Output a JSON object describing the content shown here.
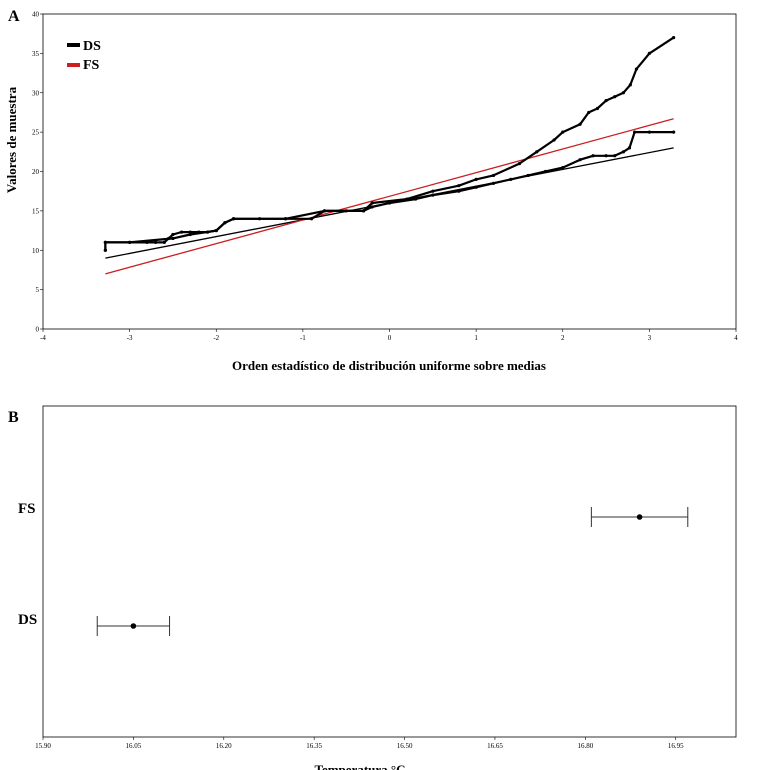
{
  "chart_data": [
    {
      "panel_label": "A",
      "type": "scatter",
      "title": "",
      "xlabel": "Orden estadístico de distribución uniforme sobre medias",
      "ylabel": "Valores de muestra",
      "xlim": [
        -4,
        4
      ],
      "ylim": [
        0,
        40
      ],
      "xticks": [
        "-4",
        "-3",
        "-2",
        "-1",
        "0",
        "1",
        "2",
        "3",
        "4"
      ],
      "yticks": [
        "0",
        "5",
        "10",
        "15",
        "20",
        "25",
        "30",
        "35",
        "40"
      ],
      "legend": {
        "position": "top-left",
        "entries": [
          {
            "name": "DS",
            "color": "#000000"
          },
          {
            "name": "FS",
            "color": "#cc1f1f"
          }
        ]
      },
      "series": [
        {
          "name": "DS",
          "color": "#000000",
          "points": [
            [
              -3.28,
              10
            ],
            [
              -3.28,
              11
            ],
            [
              -3.0,
              11
            ],
            [
              -2.8,
              11
            ],
            [
              -2.7,
              11
            ],
            [
              -2.6,
              11
            ],
            [
              -2.55,
              11.5
            ],
            [
              -2.5,
              12
            ],
            [
              -2.4,
              12.3
            ],
            [
              -2.3,
              12.3
            ],
            [
              -2.2,
              12.3
            ],
            [
              -2.1,
              12.3
            ],
            [
              -2.0,
              12.5
            ],
            [
              -1.9,
              13.5
            ],
            [
              -1.8,
              14
            ],
            [
              -1.5,
              14
            ],
            [
              -1.2,
              14
            ],
            [
              -0.9,
              14
            ],
            [
              -0.75,
              15
            ],
            [
              -0.5,
              15
            ],
            [
              -0.3,
              15
            ],
            [
              -0.2,
              15.5
            ],
            [
              0,
              16
            ],
            [
              0.3,
              16.5
            ],
            [
              0.5,
              17
            ],
            [
              0.8,
              17.5
            ],
            [
              1.0,
              18
            ],
            [
              1.2,
              18.5
            ],
            [
              1.4,
              19
            ],
            [
              1.6,
              19.5
            ],
            [
              1.8,
              20
            ],
            [
              2.0,
              20.5
            ],
            [
              2.2,
              21.5
            ],
            [
              2.35,
              22
            ],
            [
              2.5,
              22
            ],
            [
              2.6,
              22
            ],
            [
              2.7,
              22.5
            ],
            [
              2.77,
              23
            ],
            [
              2.83,
              25
            ],
            [
              3.0,
              25
            ],
            [
              3.28,
              25
            ]
          ],
          "fit_line": [
            [
              -3.28,
              9
            ],
            [
              3.28,
              23
            ]
          ]
        },
        {
          "name": "FS",
          "color": "#cc1f1f",
          "points": [
            [
              -3.28,
              10
            ],
            [
              -3.28,
              11
            ],
            [
              -3.0,
              11
            ],
            [
              -2.5,
              11.5
            ],
            [
              -2.3,
              12
            ],
            [
              -2.0,
              12.5
            ],
            [
              -1.9,
              13.5
            ],
            [
              -1.8,
              14
            ],
            [
              -1.2,
              14
            ],
            [
              -0.75,
              15
            ],
            [
              -0.3,
              15
            ],
            [
              -0.2,
              16
            ],
            [
              0.2,
              16.5
            ],
            [
              0.5,
              17.5
            ],
            [
              0.8,
              18.2
            ],
            [
              1.0,
              19
            ],
            [
              1.2,
              19.5
            ],
            [
              1.5,
              21
            ],
            [
              1.7,
              22.5
            ],
            [
              1.9,
              24
            ],
            [
              2.0,
              25
            ],
            [
              2.2,
              26
            ],
            [
              2.3,
              27.5
            ],
            [
              2.4,
              28
            ],
            [
              2.5,
              29
            ],
            [
              2.6,
              29.5
            ],
            [
              2.7,
              30
            ],
            [
              2.78,
              31
            ],
            [
              2.85,
              33
            ],
            [
              3.0,
              35
            ],
            [
              3.28,
              37
            ]
          ],
          "fit_line": [
            [
              -3.28,
              7
            ],
            [
              3.28,
              26.7
            ]
          ]
        }
      ]
    },
    {
      "panel_label": "B",
      "type": "scatter",
      "title": "",
      "xlabel": "Temperatura °C",
      "ylabel": "",
      "xlim": [
        15.9,
        17.05
      ],
      "xticks": [
        "15.90",
        "16.05",
        "16.20",
        "16.35",
        "16.50",
        "16.65",
        "16.80",
        "16.95"
      ],
      "categories": [
        "FS",
        "DS"
      ],
      "series": [
        {
          "name": "FS",
          "mean": 16.89,
          "ci_low": 16.81,
          "ci_high": 16.97
        },
        {
          "name": "DS",
          "mean": 16.05,
          "ci_low": 15.99,
          "ci_high": 16.11
        }
      ]
    }
  ]
}
